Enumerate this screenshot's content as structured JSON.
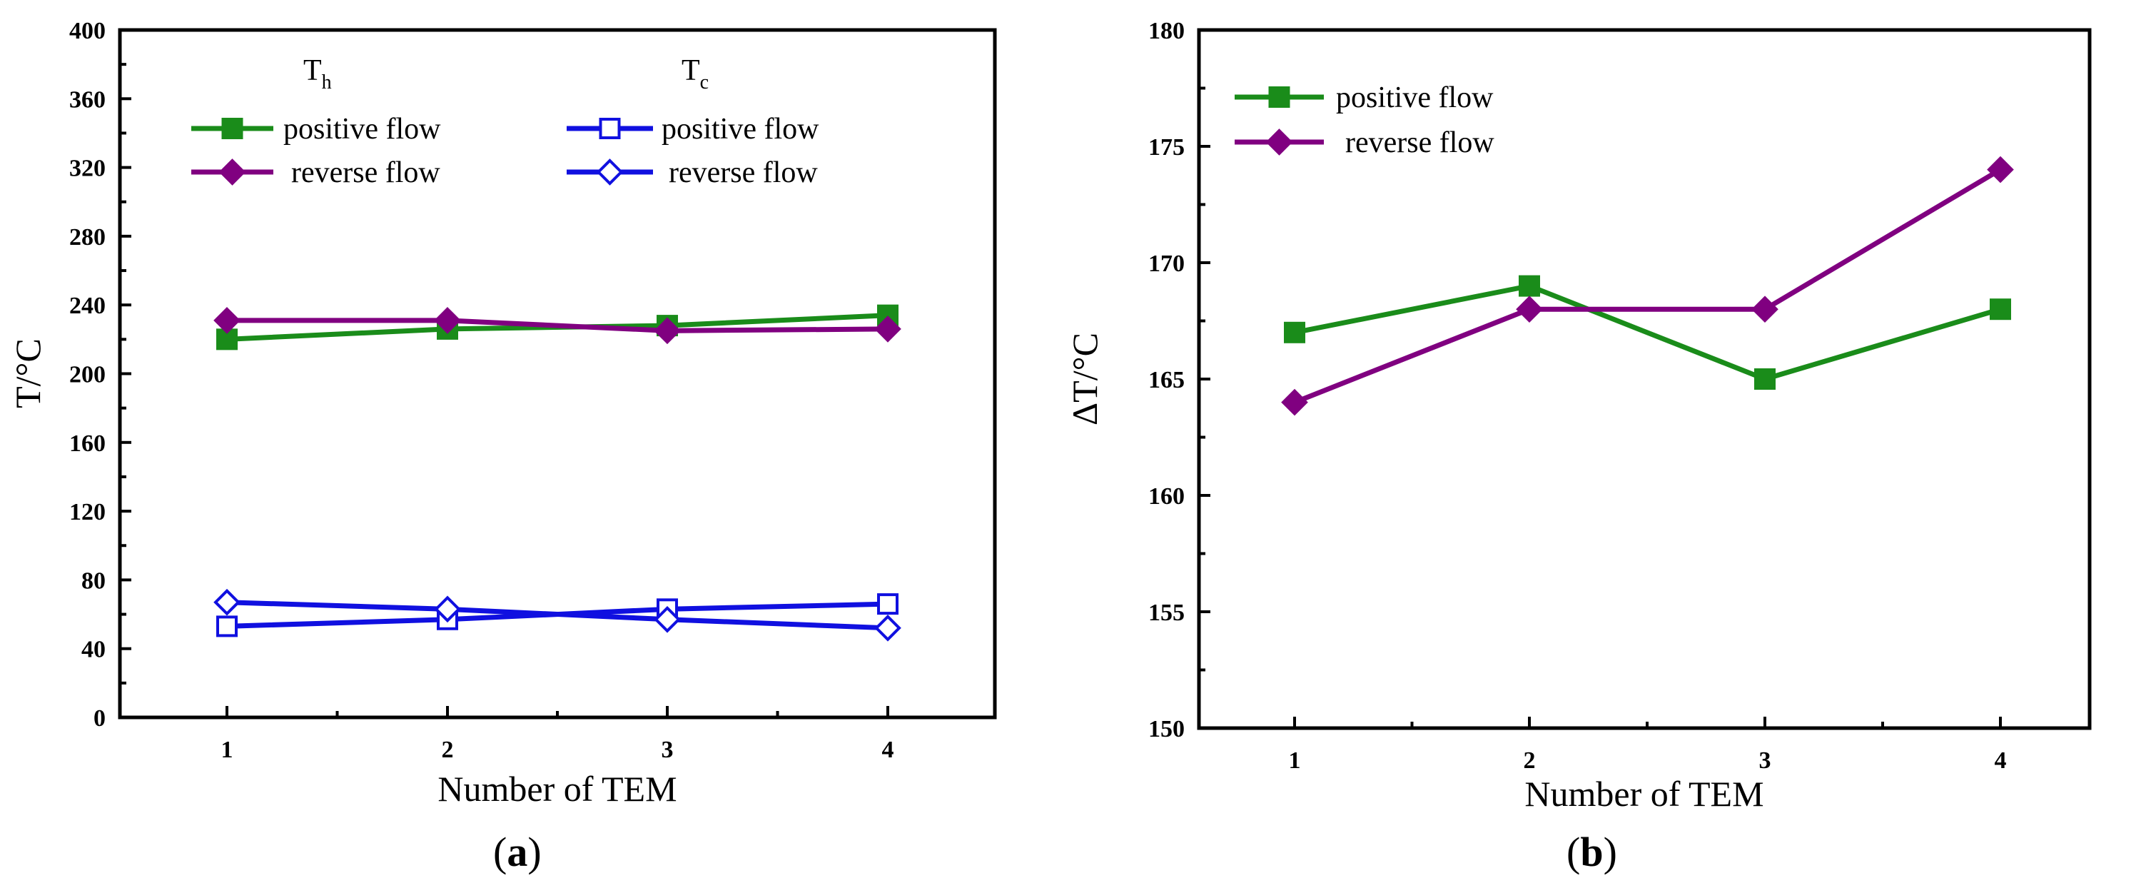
{
  "chart_data": [
    {
      "panel": "(a)",
      "panel_letter": "a",
      "type": "line",
      "xlabel": "Number of TEM",
      "ylabel": "T/°C",
      "categories": [
        1,
        2,
        3,
        4
      ],
      "ylim": [
        0,
        400
      ],
      "yticks": [
        0,
        40,
        80,
        120,
        160,
        200,
        240,
        280,
        320,
        360,
        400
      ],
      "legend_groups": [
        {
          "title_main": "T",
          "title_sub": "h"
        },
        {
          "title_main": "T",
          "title_sub": "c"
        }
      ],
      "series": [
        {
          "name": "positive flow",
          "group": "Th",
          "color": "#1a8c1a",
          "marker": "square-filled",
          "values": [
            220,
            226,
            228,
            234
          ]
        },
        {
          "name": "reverse flow",
          "group": "Th",
          "color": "#800080",
          "marker": "diamond-filled",
          "values": [
            231,
            231,
            225,
            226
          ]
        },
        {
          "name": "positive flow",
          "group": "Tc",
          "color": "#1010e0",
          "marker": "square-open",
          "values": [
            53,
            57,
            63,
            66
          ]
        },
        {
          "name": "reverse flow",
          "group": "Tc",
          "color": "#1010e0",
          "marker": "diamond-open",
          "values": [
            67,
            63,
            57,
            52
          ]
        }
      ]
    },
    {
      "panel": "(b)",
      "panel_letter": "b",
      "type": "line",
      "xlabel": "Number of TEM",
      "ylabel": "ΔT/°C",
      "categories": [
        1,
        2,
        3,
        4
      ],
      "ylim": [
        150,
        180
      ],
      "yticks": [
        150,
        155,
        160,
        165,
        170,
        175,
        180
      ],
      "series": [
        {
          "name": "positive flow",
          "color": "#1a8c1a",
          "marker": "square-filled",
          "values": [
            167,
            169,
            165,
            168
          ]
        },
        {
          "name": "reverse flow",
          "color": "#800080",
          "marker": "diamond-filled",
          "values": [
            164,
            168,
            168,
            174
          ]
        }
      ]
    }
  ]
}
